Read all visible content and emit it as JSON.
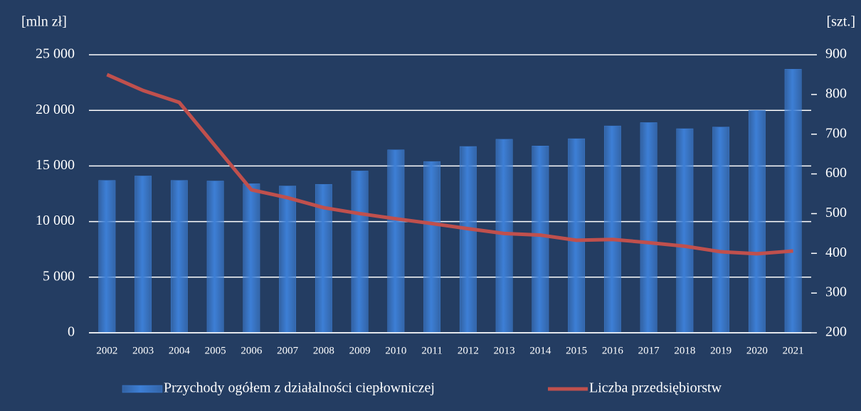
{
  "chart_data": {
    "type": "bar-line",
    "ylabel": "[mln zł]",
    "y2label": "[szt.]",
    "categories": [
      "2002",
      "2003",
      "2004",
      "2005",
      "2006",
      "2007",
      "2008",
      "2009",
      "2010",
      "2011",
      "2012",
      "2013",
      "2014",
      "2015",
      "2016",
      "2017",
      "2018",
      "2019",
      "2020",
      "2021"
    ],
    "series": [
      {
        "name": "Przychody ogółem z działalności ciepłowniczej",
        "type": "bar",
        "color": "#3d7fd6",
        "values": [
          13700,
          14100,
          13700,
          13650,
          13400,
          13200,
          13350,
          14550,
          16450,
          15400,
          16750,
          17400,
          16800,
          17450,
          18600,
          18900,
          18350,
          18500,
          20000,
          23700
        ]
      },
      {
        "name": "Liczba przedsiębiorstw",
        "type": "line",
        "color": "#c0504d",
        "axis": "y2",
        "values": [
          850,
          810,
          780,
          670,
          560,
          540,
          515,
          500,
          487,
          475,
          462,
          450,
          446,
          433,
          435,
          427,
          418,
          404,
          399,
          406
        ]
      }
    ],
    "ylim": [
      0,
      25000
    ],
    "yticks": [
      0,
      {
        "value": 5000,
        "label": "5 000"
      },
      {
        "value": 10000,
        "label": "10 000"
      },
      {
        "value": 15000,
        "label": "15 000"
      },
      {
        "value": 20000,
        "label": "20 000"
      },
      {
        "value": 25000,
        "label": "25 000"
      }
    ],
    "y2lim": [
      200,
      900
    ],
    "y2ticks": [
      200,
      300,
      400,
      500,
      600,
      700,
      800,
      900
    ],
    "grid": true,
    "legend": "bottom"
  }
}
